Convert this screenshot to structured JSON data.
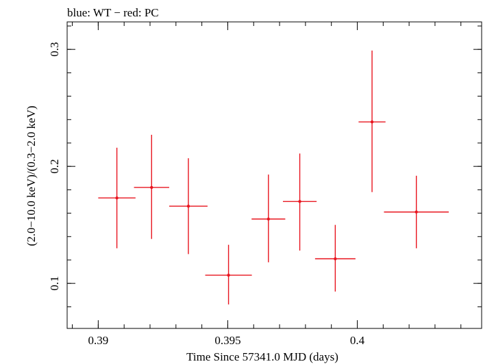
{
  "chart_data": {
    "type": "scatter",
    "title": "blue: WT − red: PC",
    "xlabel": "Time Since 57341.0 MJD (days)",
    "ylabel": "(2.0−10.0 keV)/(0.3−2.0 keV)",
    "xlim": [
      0.3888,
      0.4048
    ],
    "ylim": [
      0.0615,
      0.3235
    ],
    "x_ticks": [
      0.39,
      0.395,
      0.4
    ],
    "x_tick_labels": [
      "0.39",
      "0.395",
      "0.4"
    ],
    "y_ticks": [
      0.1,
      0.2,
      0.3
    ],
    "y_tick_labels": [
      "0.1",
      "0.2",
      "0.3"
    ],
    "series": [
      {
        "color": "#e8141e",
        "points": [
          {
            "x": 0.39072,
            "y": 0.173,
            "xerr": 0.00072,
            "ylo": 0.13,
            "yhi": 0.216
          },
          {
            "x": 0.39206,
            "y": 0.182,
            "xerr": 0.00068,
            "ylo": 0.138,
            "yhi": 0.227
          },
          {
            "x": 0.39348,
            "y": 0.166,
            "xerr": 0.00074,
            "ylo": 0.125,
            "yhi": 0.207
          },
          {
            "x": 0.39503,
            "y": 0.107,
            "xerr": 0.0009,
            "ylo": 0.082,
            "yhi": 0.133
          },
          {
            "x": 0.39657,
            "y": 0.155,
            "xerr": 0.00065,
            "ylo": 0.118,
            "yhi": 0.193
          },
          {
            "x": 0.39778,
            "y": 0.17,
            "xerr": 0.00065,
            "ylo": 0.128,
            "yhi": 0.211
          },
          {
            "x": 0.39915,
            "y": 0.121,
            "xerr": 0.00078,
            "ylo": 0.093,
            "yhi": 0.15
          },
          {
            "x": 0.40057,
            "y": 0.238,
            "xerr": 0.00052,
            "ylo": 0.178,
            "yhi": 0.299
          },
          {
            "x": 0.40228,
            "y": 0.161,
            "xerr": 0.00125,
            "ylo": 0.13,
            "yhi": 0.192
          }
        ]
      }
    ]
  }
}
